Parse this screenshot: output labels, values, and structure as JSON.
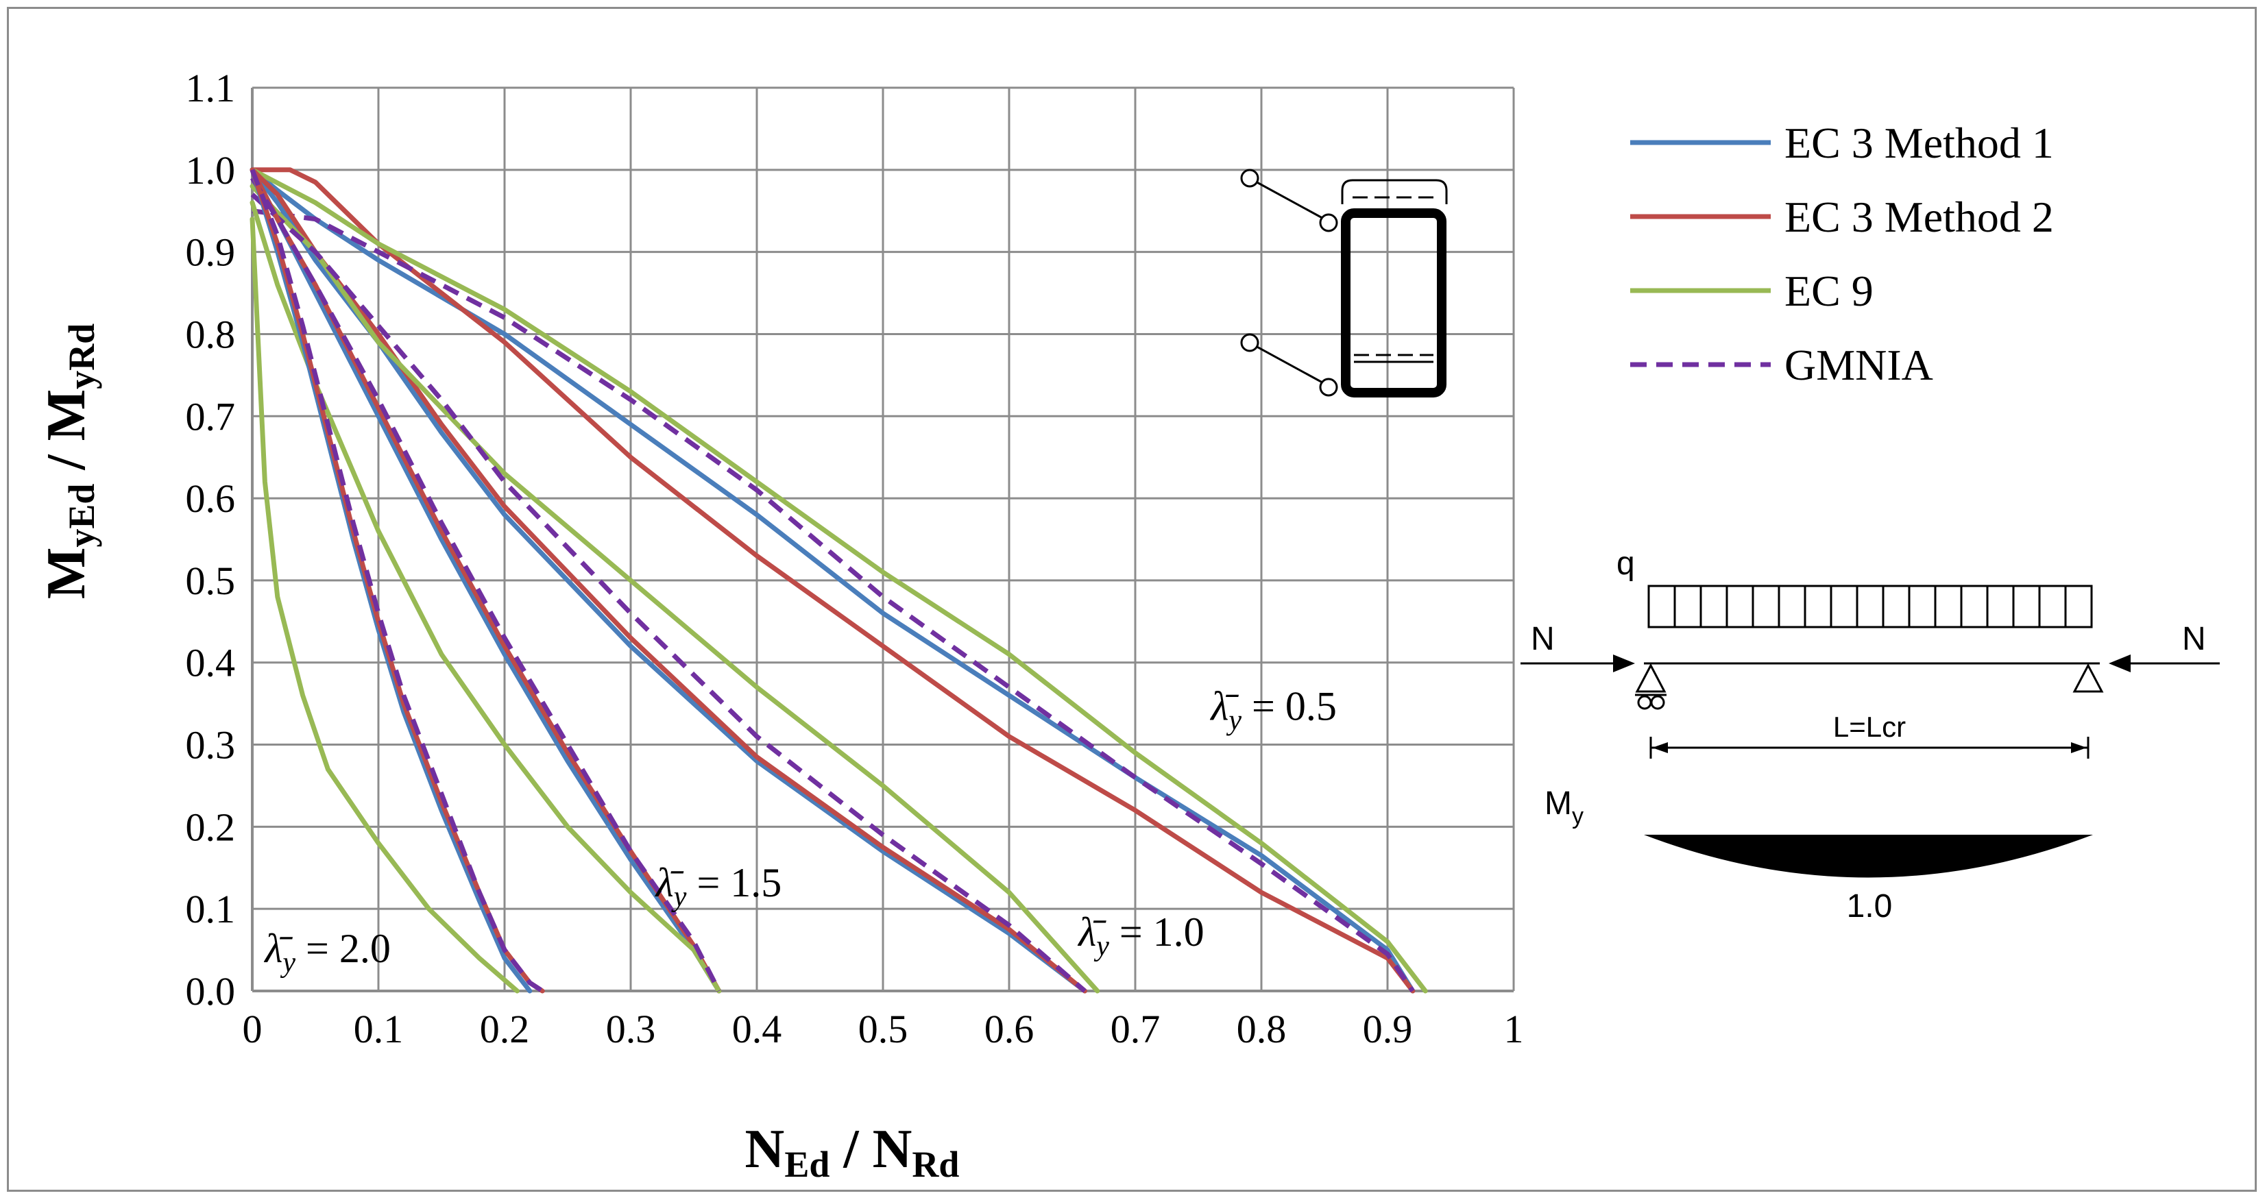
{
  "chart_data": {
    "type": "line",
    "xlabel": {
      "main": "N",
      "sub": "Ed",
      "sep": " / ",
      "main2": "N",
      "sub2": "Rd"
    },
    "ylabel": {
      "main": "M",
      "sub": "yEd",
      "sep": " / ",
      "main2": "M",
      "sub2": "yRd"
    },
    "xlim": [
      0,
      1
    ],
    "ylim": [
      0,
      1.1
    ],
    "x_ticks": [
      "0",
      "0.1",
      "0.2",
      "0.3",
      "0.4",
      "0.5",
      "0.6",
      "0.7",
      "0.8",
      "0.9",
      "1"
    ],
    "y_ticks": [
      "0.0",
      "0.1",
      "0.2",
      "0.3",
      "0.4",
      "0.5",
      "0.6",
      "0.7",
      "0.8",
      "0.9",
      "1.0",
      "1.1"
    ],
    "grid": true,
    "legend_position": "right",
    "legend": [
      {
        "label": "EC 3 Method 1",
        "color": "#4a7ebb",
        "dash": false
      },
      {
        "label": "EC 3 Method 2",
        "color": "#be4b48",
        "dash": false
      },
      {
        "label": "EC 9",
        "color": "#98b954",
        "dash": false
      },
      {
        "label": "GMNIA",
        "color": "#7030a0",
        "dash": true
      }
    ],
    "series": [
      {
        "name": "EC 3 Method 1",
        "slenderness": "0.5",
        "color": "#4a7ebb",
        "dash": false,
        "points": [
          [
            0,
            1.0
          ],
          [
            0.02,
            0.975
          ],
          [
            0.05,
            0.94
          ],
          [
            0.1,
            0.89
          ],
          [
            0.2,
            0.8
          ],
          [
            0.3,
            0.69
          ],
          [
            0.4,
            0.58
          ],
          [
            0.5,
            0.46
          ],
          [
            0.6,
            0.36
          ],
          [
            0.7,
            0.26
          ],
          [
            0.8,
            0.165
          ],
          [
            0.9,
            0.05
          ],
          [
            0.92,
            0.0
          ]
        ]
      },
      {
        "name": "EC 3 Method 2",
        "slenderness": "0.5",
        "color": "#be4b48",
        "dash": false,
        "points": [
          [
            0,
            1.0
          ],
          [
            0.03,
            1.0
          ],
          [
            0.05,
            0.985
          ],
          [
            0.1,
            0.91
          ],
          [
            0.2,
            0.79
          ],
          [
            0.3,
            0.65
          ],
          [
            0.4,
            0.53
          ],
          [
            0.5,
            0.42
          ],
          [
            0.6,
            0.31
          ],
          [
            0.7,
            0.22
          ],
          [
            0.8,
            0.12
          ],
          [
            0.9,
            0.04
          ],
          [
            0.92,
            0.0
          ]
        ]
      },
      {
        "name": "EC 9",
        "slenderness": "0.5",
        "color": "#98b954",
        "dash": false,
        "points": [
          [
            0,
            1.0
          ],
          [
            0.05,
            0.96
          ],
          [
            0.1,
            0.91
          ],
          [
            0.2,
            0.83
          ],
          [
            0.3,
            0.73
          ],
          [
            0.4,
            0.62
          ],
          [
            0.5,
            0.51
          ],
          [
            0.6,
            0.41
          ],
          [
            0.7,
            0.29
          ],
          [
            0.8,
            0.18
          ],
          [
            0.9,
            0.06
          ],
          [
            0.93,
            0.0
          ]
        ]
      },
      {
        "name": "GMNIA",
        "slenderness": "0.5",
        "color": "#7030a0",
        "dash": true,
        "points": [
          [
            0,
            0.95
          ],
          [
            0.05,
            0.94
          ],
          [
            0.1,
            0.9
          ],
          [
            0.2,
            0.82
          ],
          [
            0.3,
            0.72
          ],
          [
            0.4,
            0.61
          ],
          [
            0.5,
            0.48
          ],
          [
            0.6,
            0.37
          ],
          [
            0.7,
            0.26
          ],
          [
            0.8,
            0.155
          ],
          [
            0.9,
            0.045
          ],
          [
            0.92,
            0.0
          ]
        ]
      },
      {
        "name": "EC 3 Method 1",
        "slenderness": "1.0",
        "color": "#4a7ebb",
        "dash": false,
        "points": [
          [
            0,
            1.0
          ],
          [
            0.02,
            0.96
          ],
          [
            0.05,
            0.89
          ],
          [
            0.1,
            0.79
          ],
          [
            0.15,
            0.68
          ],
          [
            0.2,
            0.58
          ],
          [
            0.3,
            0.42
          ],
          [
            0.4,
            0.28
          ],
          [
            0.5,
            0.17
          ],
          [
            0.6,
            0.07
          ],
          [
            0.66,
            0.0
          ]
        ]
      },
      {
        "name": "EC 3 Method 2",
        "slenderness": "1.0",
        "color": "#be4b48",
        "dash": false,
        "points": [
          [
            0,
            1.0
          ],
          [
            0.02,
            0.97
          ],
          [
            0.05,
            0.9
          ],
          [
            0.1,
            0.8
          ],
          [
            0.15,
            0.69
          ],
          [
            0.2,
            0.59
          ],
          [
            0.3,
            0.43
          ],
          [
            0.4,
            0.285
          ],
          [
            0.5,
            0.175
          ],
          [
            0.6,
            0.075
          ],
          [
            0.66,
            0.0
          ]
        ]
      },
      {
        "name": "EC 9",
        "slenderness": "1.0",
        "color": "#98b954",
        "dash": false,
        "points": [
          [
            0,
            0.98
          ],
          [
            0.05,
            0.9
          ],
          [
            0.1,
            0.79
          ],
          [
            0.2,
            0.63
          ],
          [
            0.3,
            0.5
          ],
          [
            0.4,
            0.37
          ],
          [
            0.5,
            0.25
          ],
          [
            0.6,
            0.12
          ],
          [
            0.67,
            0.0
          ]
        ]
      },
      {
        "name": "GMNIA",
        "slenderness": "1.0",
        "color": "#7030a0",
        "dash": true,
        "points": [
          [
            0,
            0.97
          ],
          [
            0.05,
            0.9
          ],
          [
            0.1,
            0.81
          ],
          [
            0.15,
            0.72
          ],
          [
            0.2,
            0.62
          ],
          [
            0.3,
            0.46
          ],
          [
            0.4,
            0.31
          ],
          [
            0.5,
            0.19
          ],
          [
            0.6,
            0.08
          ],
          [
            0.66,
            0.0
          ]
        ]
      },
      {
        "name": "EC 3 Method 1",
        "slenderness": "1.5",
        "color": "#4a7ebb",
        "dash": false,
        "points": [
          [
            0,
            1.0
          ],
          [
            0.02,
            0.94
          ],
          [
            0.05,
            0.85
          ],
          [
            0.1,
            0.7
          ],
          [
            0.15,
            0.55
          ],
          [
            0.2,
            0.41
          ],
          [
            0.25,
            0.28
          ],
          [
            0.3,
            0.16
          ],
          [
            0.35,
            0.05
          ],
          [
            0.37,
            0.0
          ]
        ]
      },
      {
        "name": "EC 3 Method 2",
        "slenderness": "1.5",
        "color": "#be4b48",
        "dash": false,
        "points": [
          [
            0,
            1.0
          ],
          [
            0.02,
            0.94
          ],
          [
            0.05,
            0.86
          ],
          [
            0.1,
            0.71
          ],
          [
            0.15,
            0.56
          ],
          [
            0.2,
            0.42
          ],
          [
            0.25,
            0.29
          ],
          [
            0.3,
            0.17
          ],
          [
            0.35,
            0.055
          ],
          [
            0.37,
            0.0
          ]
        ]
      },
      {
        "name": "EC 9",
        "slenderness": "1.5",
        "color": "#98b954",
        "dash": false,
        "points": [
          [
            0,
            0.96
          ],
          [
            0.02,
            0.86
          ],
          [
            0.05,
            0.74
          ],
          [
            0.1,
            0.56
          ],
          [
            0.15,
            0.41
          ],
          [
            0.2,
            0.3
          ],
          [
            0.25,
            0.2
          ],
          [
            0.3,
            0.12
          ],
          [
            0.35,
            0.05
          ],
          [
            0.37,
            0.0
          ]
        ]
      },
      {
        "name": "GMNIA",
        "slenderness": "1.5",
        "color": "#7030a0",
        "dash": true,
        "points": [
          [
            0,
            0.99
          ],
          [
            0.02,
            0.94
          ],
          [
            0.05,
            0.86
          ],
          [
            0.1,
            0.72
          ],
          [
            0.15,
            0.57
          ],
          [
            0.2,
            0.43
          ],
          [
            0.25,
            0.3
          ],
          [
            0.3,
            0.17
          ],
          [
            0.35,
            0.06
          ],
          [
            0.37,
            0.0
          ]
        ]
      },
      {
        "name": "EC 3 Method 1",
        "slenderness": "2.0",
        "color": "#4a7ebb",
        "dash": false,
        "points": [
          [
            0,
            1.0
          ],
          [
            0.02,
            0.9
          ],
          [
            0.04,
            0.79
          ],
          [
            0.06,
            0.67
          ],
          [
            0.08,
            0.55
          ],
          [
            0.1,
            0.44
          ],
          [
            0.12,
            0.34
          ],
          [
            0.15,
            0.22
          ],
          [
            0.18,
            0.11
          ],
          [
            0.2,
            0.04
          ],
          [
            0.22,
            0.0
          ]
        ]
      },
      {
        "name": "EC 3 Method 2",
        "slenderness": "2.0",
        "color": "#be4b48",
        "dash": false,
        "points": [
          [
            0,
            1.0
          ],
          [
            0.02,
            0.91
          ],
          [
            0.04,
            0.8
          ],
          [
            0.06,
            0.68
          ],
          [
            0.08,
            0.56
          ],
          [
            0.1,
            0.45
          ],
          [
            0.12,
            0.35
          ],
          [
            0.15,
            0.23
          ],
          [
            0.18,
            0.12
          ],
          [
            0.2,
            0.05
          ],
          [
            0.22,
            0.01
          ],
          [
            0.23,
            0.0
          ]
        ]
      },
      {
        "name": "EC 9",
        "slenderness": "2.0",
        "color": "#98b954",
        "dash": false,
        "points": [
          [
            0,
            0.94
          ],
          [
            0.005,
            0.78
          ],
          [
            0.01,
            0.62
          ],
          [
            0.02,
            0.48
          ],
          [
            0.04,
            0.36
          ],
          [
            0.06,
            0.27
          ],
          [
            0.1,
            0.18
          ],
          [
            0.14,
            0.1
          ],
          [
            0.18,
            0.04
          ],
          [
            0.21,
            0.0
          ]
        ]
      },
      {
        "name": "GMNIA",
        "slenderness": "2.0",
        "color": "#7030a0",
        "dash": true,
        "points": [
          [
            0,
            1.0
          ],
          [
            0.02,
            0.92
          ],
          [
            0.04,
            0.81
          ],
          [
            0.06,
            0.69
          ],
          [
            0.08,
            0.57
          ],
          [
            0.1,
            0.46
          ],
          [
            0.12,
            0.36
          ],
          [
            0.15,
            0.24
          ],
          [
            0.18,
            0.12
          ],
          [
            0.2,
            0.05
          ],
          [
            0.22,
            0.01
          ],
          [
            0.23,
            0.0
          ]
        ]
      }
    ],
    "annotations": [
      {
        "symbol": "λ̄",
        "sub": "y",
        "text": " = 0.5",
        "x": 0.76,
        "y": 0.33
      },
      {
        "symbol": "λ̄",
        "sub": "y",
        "text": " = 1.0",
        "x": 0.655,
        "y": 0.055
      },
      {
        "symbol": "λ̄",
        "sub": "y",
        "text": " = 1.5",
        "x": 0.32,
        "y": 0.115
      },
      {
        "symbol": "λ̄",
        "sub": "y",
        "text": " = 2.0",
        "x": 0.01,
        "y": 0.035
      }
    ]
  },
  "beam_diagram": {
    "load_label": "q",
    "axial_left": "N",
    "axial_right": "N",
    "length_label": "L=Lcr",
    "moment_label": "M",
    "moment_sub": "y",
    "moment_value": "1.0"
  }
}
